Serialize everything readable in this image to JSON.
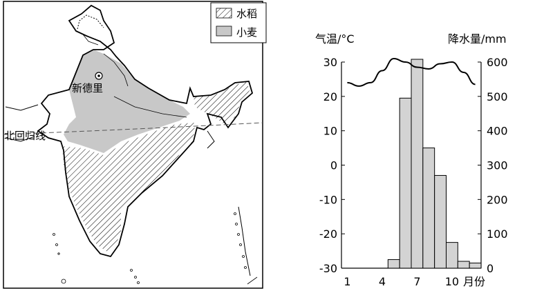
{
  "map": {
    "legend": [
      {
        "label": "水稻",
        "pattern": "hatch"
      },
      {
        "label": "小麦",
        "color": "#c8c8c8"
      }
    ],
    "city_label": "新德里",
    "tropic_label": "北回归线"
  },
  "chart_data": {
    "type": "bar+line",
    "left_axis_title": "气温/°C",
    "right_axis_title": "降水量/mm",
    "x_title": "月份",
    "x_ticks": [
      "1",
      "4",
      "7",
      "10"
    ],
    "left_ticks": [
      30,
      20,
      10,
      0,
      -10,
      -20,
      -30
    ],
    "right_ticks": [
      600,
      500,
      400,
      300,
      200,
      100,
      0
    ],
    "left_range": [
      -30,
      30
    ],
    "right_range": [
      0,
      600
    ],
    "months": [
      1,
      2,
      3,
      4,
      5,
      6,
      7,
      8,
      9,
      10,
      11,
      12
    ],
    "precipitation_mm": [
      0,
      0,
      0,
      0,
      25,
      495,
      625,
      350,
      270,
      75,
      20,
      15
    ],
    "temperature_c": [
      24,
      23,
      24,
      27.5,
      31,
      30,
      28.5,
      28,
      29.5,
      30,
      27,
      23.5
    ],
    "bar_color": "#d3d3d3"
  }
}
